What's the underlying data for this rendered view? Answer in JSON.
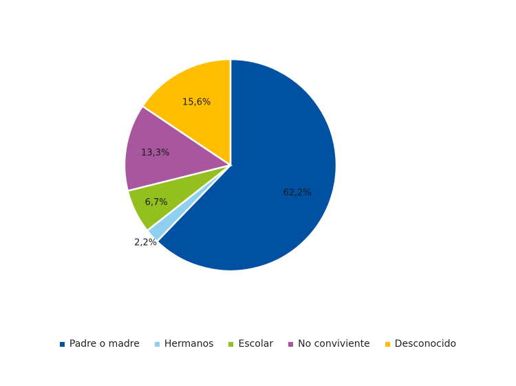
{
  "chart_data": {
    "type": "pie",
    "title": "",
    "categories": [
      "Padre o madre",
      "Hermanos",
      "Escolar",
      "No conviviente",
      "Desconocido"
    ],
    "values": [
      62.2,
      2.2,
      6.7,
      13.3,
      15.6
    ],
    "labels": [
      "62,2%",
      "2,2%",
      "6,7%",
      "13,3%",
      "15,6%"
    ],
    "colors": [
      "#0051a2",
      "#8fd0f1",
      "#93c01f",
      "#a8579e",
      "#ffbf00"
    ],
    "start_angle_deg": 0,
    "direction": "clockwise",
    "legend_position": "bottom"
  },
  "legend": {
    "items": [
      {
        "label": "Padre o madre",
        "color": "#0051a2"
      },
      {
        "label": "Hermanos",
        "color": "#8fd0f1"
      },
      {
        "label": "Escolar",
        "color": "#93c01f"
      },
      {
        "label": "No conviviente",
        "color": "#a8579e"
      },
      {
        "label": "Desconocido",
        "color": "#ffbf00"
      }
    ]
  }
}
